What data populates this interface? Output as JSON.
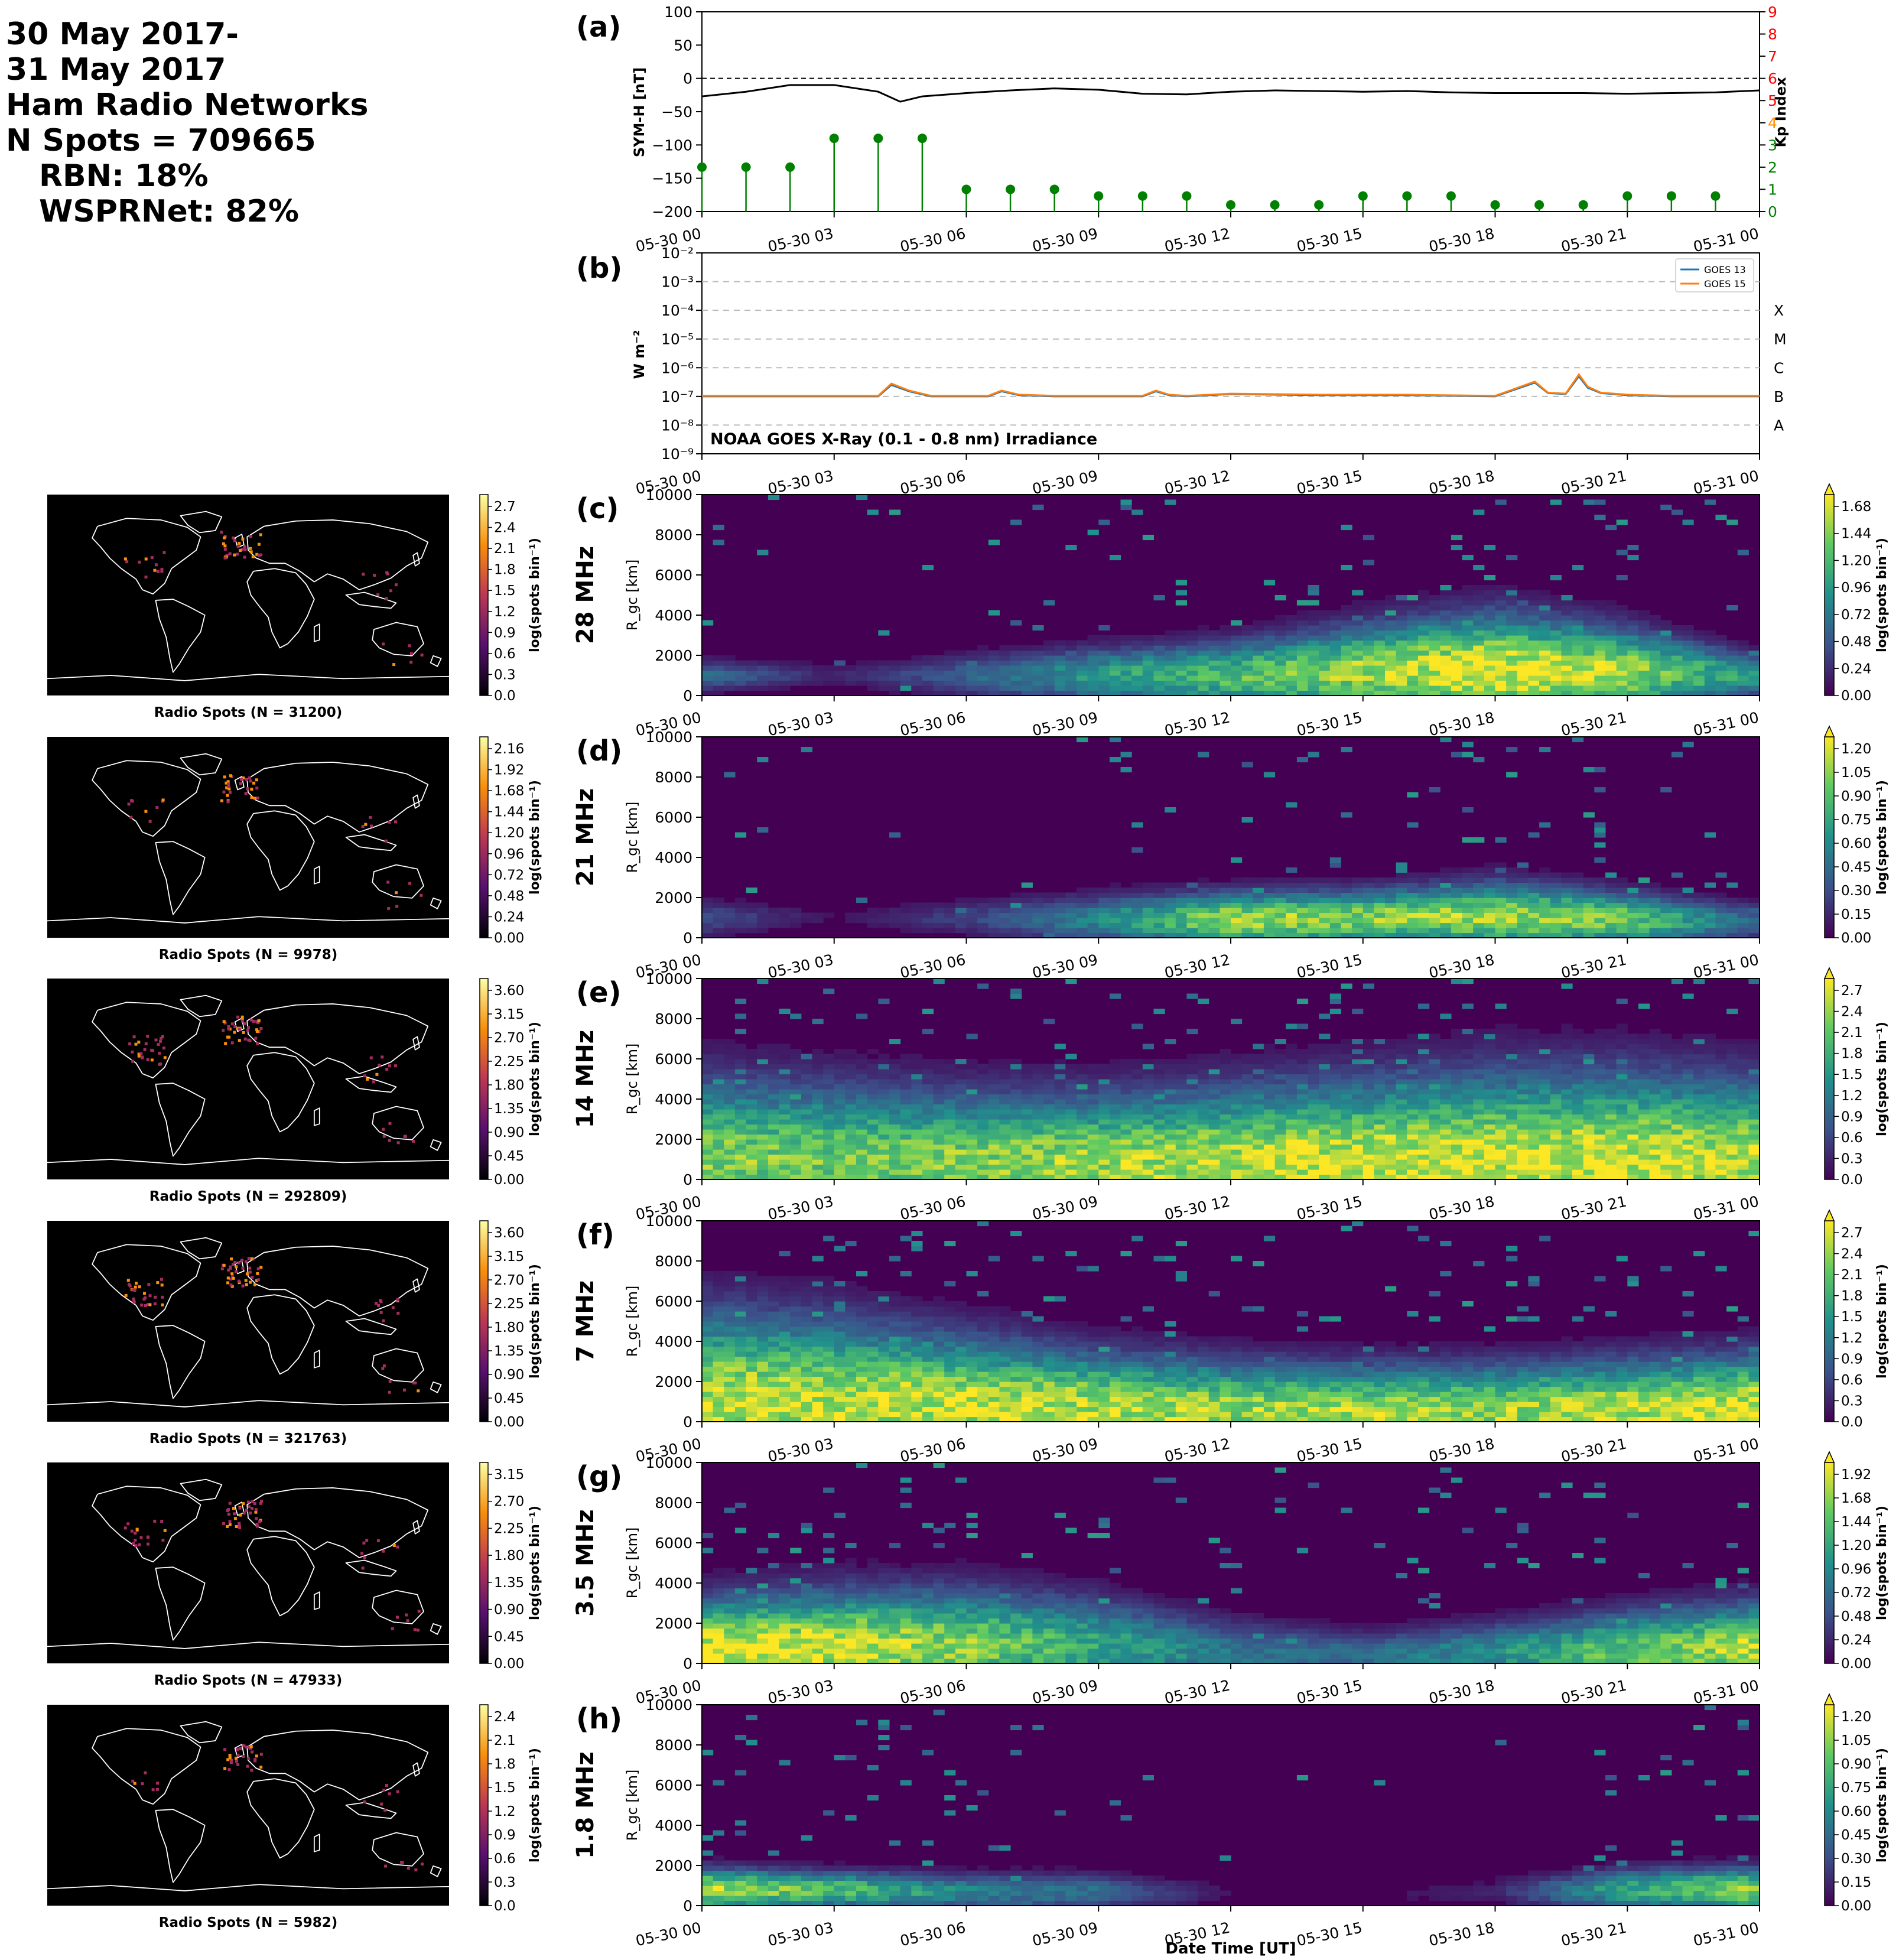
{
  "header": {
    "line1": "30 May 2017-",
    "line2": "31 May 2017",
    "line3": "Ham Radio Networks",
    "line4": "N Spots = 709665",
    "line5": "RBN: 18%",
    "line6": "WSPRNet: 82%"
  },
  "x_ticks": [
    "05-30 00",
    "05-30 03",
    "05-30 06",
    "05-30 09",
    "05-30 12",
    "05-30 15",
    "05-30 18",
    "05-30 21",
    "05-31 00"
  ],
  "x_label": "Date Time [UT]",
  "chart_data": [
    {
      "panel": "(a)",
      "type": "line",
      "ylabel": "SYM-H [nT]",
      "ylim": [
        -200,
        100
      ],
      "yticks": [
        100,
        50,
        0,
        -50,
        -100,
        -150,
        -200
      ],
      "y2label": "Kp Index",
      "y2lim": [
        0,
        9
      ],
      "y2ticks": [
        0,
        1,
        2,
        3,
        4,
        5,
        6,
        7,
        8,
        9
      ],
      "y2_tick_colors": [
        "#008000",
        "#008000",
        "#008000",
        "#008000",
        "#ff8c00",
        "#ff0000",
        "#ff0000",
        "#ff0000",
        "#ff0000",
        "#ff0000"
      ],
      "sym_h": {
        "color": "#000000",
        "x_hours": [
          0,
          1,
          2,
          3,
          4,
          4.5,
          5,
          6,
          7,
          8,
          9,
          10,
          11,
          12,
          13,
          14,
          15,
          16,
          17,
          18,
          19,
          20,
          21,
          22,
          23,
          24
        ],
        "values": [
          -27,
          -20,
          -10,
          -10,
          -20,
          -35,
          -27,
          -22,
          -18,
          -15,
          -17,
          -23,
          -24,
          -20,
          -18,
          -19,
          -20,
          -19,
          -21,
          -22,
          -22,
          -22,
          -23,
          -22,
          -21,
          -18
        ]
      },
      "kp": {
        "color": "#008000",
        "x_hours": [
          0,
          1,
          2,
          3,
          4,
          5,
          6,
          7,
          8,
          9,
          10,
          11,
          12,
          13,
          14,
          15,
          16,
          17,
          18,
          19,
          20,
          21,
          22,
          23
        ],
        "values": [
          2,
          2,
          2,
          3.3,
          3.3,
          3.3,
          1,
          1,
          1,
          0.7,
          0.7,
          0.7,
          0.3,
          0.3,
          0.3,
          0.7,
          0.7,
          0.7,
          0.3,
          0.3,
          0.3,
          0.7,
          0.7,
          0.7
        ]
      }
    },
    {
      "panel": "(b)",
      "type": "line",
      "ylabel": "W m⁻²",
      "yscale": "log",
      "ylim_exp": [
        -9,
        -2
      ],
      "ytick_labels": [
        "10⁻⁹",
        "10⁻⁸",
        "10⁻⁷",
        "10⁻⁶",
        "10⁻⁵",
        "10⁻⁴",
        "10⁻³",
        "10⁻²"
      ],
      "flare_classes": [
        "X",
        "M",
        "C",
        "B",
        "A"
      ],
      "annotation": "NOAA GOES X-Ray (0.1 - 0.8 nm) Irradiance",
      "series": [
        {
          "name": "GOES 13",
          "color": "#1f77b4",
          "x_hours": [
            0,
            2,
            4,
            4.3,
            4.7,
            5.2,
            6,
            6.5,
            6.8,
            7.2,
            8,
            10,
            10.3,
            10.6,
            11,
            12,
            14,
            16,
            18,
            18.9,
            19.2,
            19.6,
            19.9,
            20.1,
            20.4,
            21,
            22,
            24
          ],
          "values": [
            1e-07,
            1e-07,
            1e-07,
            2.5e-07,
            1.5e-07,
            1e-07,
            1e-07,
            1e-07,
            1.5e-07,
            1.1e-07,
            1e-07,
            1e-07,
            1.5e-07,
            1.1e-07,
            1e-07,
            1.2e-07,
            1.1e-07,
            1.1e-07,
            1e-07,
            3e-07,
            1.3e-07,
            1.2e-07,
            5e-07,
            2e-07,
            1.3e-07,
            1.1e-07,
            1e-07,
            1e-07
          ]
        },
        {
          "name": "GOES 15",
          "color": "#ff7f0e",
          "x_hours": [
            0,
            2,
            4,
            4.3,
            4.7,
            5.2,
            6,
            6.5,
            6.8,
            7.2,
            8,
            10,
            10.3,
            10.6,
            11,
            12,
            14,
            16,
            18,
            18.9,
            19.2,
            19.6,
            19.9,
            20.1,
            20.4,
            21,
            22,
            24
          ],
          "values": [
            1.05e-07,
            1.05e-07,
            1.05e-07,
            2.8e-07,
            1.6e-07,
            1.05e-07,
            1.05e-07,
            1.05e-07,
            1.6e-07,
            1.15e-07,
            1.05e-07,
            1.05e-07,
            1.6e-07,
            1.15e-07,
            1.05e-07,
            1.25e-07,
            1.15e-07,
            1.15e-07,
            1.05e-07,
            3.3e-07,
            1.35e-07,
            1.25e-07,
            5.8e-07,
            2.2e-07,
            1.35e-07,
            1.15e-07,
            1.05e-07,
            1.05e-07
          ]
        }
      ]
    },
    {
      "panel": "(c)",
      "band": "28 MHz",
      "type": "heatmap",
      "ylabel": "R_gc [km]",
      "ylim": [
        0,
        10000
      ],
      "yticks": [
        0,
        2000,
        4000,
        6000,
        8000,
        10000
      ],
      "cbar_label": "log(spots bin⁻¹)",
      "cbar_ticks": [
        "0.00",
        "0.24",
        "0.48",
        "0.72",
        "0.96",
        "1.20",
        "1.44",
        "1.68"
      ],
      "activity_hours": [
        0,
        3,
        6,
        9,
        12,
        15,
        18,
        21,
        24
      ],
      "activity_level": [
        0.35,
        0.1,
        0.3,
        0.55,
        0.7,
        0.85,
        1.0,
        0.85,
        0.5
      ],
      "peak_range_km": [
        1000,
        1000,
        1000,
        1000,
        1000,
        1200,
        1300,
        1200,
        1000
      ],
      "spread_km": [
        500,
        400,
        700,
        900,
        1100,
        1500,
        1800,
        1400,
        700
      ],
      "map": {
        "label": "Radio Spots (N = 31200)",
        "cbar_ticks": [
          "0.0",
          "0.3",
          "0.6",
          "0.9",
          "1.2",
          "1.5",
          "1.8",
          "2.1",
          "2.4",
          "2.7"
        ]
      }
    },
    {
      "panel": "(d)",
      "band": "21 MHz",
      "type": "heatmap",
      "ylabel": "R_gc [km]",
      "ylim": [
        0,
        10000
      ],
      "yticks": [
        0,
        2000,
        4000,
        6000,
        8000,
        10000
      ],
      "cbar_label": "log(spots bin⁻¹)",
      "cbar_ticks": [
        "0.00",
        "0.15",
        "0.30",
        "0.45",
        "0.60",
        "0.75",
        "0.90",
        "1.05",
        "1.20"
      ],
      "activity_hours": [
        0,
        3,
        6,
        9,
        12,
        15,
        18,
        21,
        24
      ],
      "activity_level": [
        0.25,
        0.05,
        0.2,
        0.45,
        0.85,
        0.8,
        0.85,
        0.75,
        0.3
      ],
      "peak_range_km": [
        1000,
        1000,
        1000,
        900,
        900,
        1000,
        1100,
        900,
        800
      ],
      "spread_km": [
        600,
        400,
        600,
        800,
        900,
        900,
        1100,
        900,
        600
      ],
      "map": {
        "label": "Radio Spots (N = 9978)",
        "cbar_ticks": [
          "0.00",
          "0.24",
          "0.48",
          "0.72",
          "0.96",
          "1.20",
          "1.44",
          "1.68",
          "1.92",
          "2.16"
        ]
      }
    },
    {
      "panel": "(e)",
      "band": "14 MHz",
      "type": "heatmap",
      "ylabel": "R_gc [km]",
      "ylim": [
        0,
        10000
      ],
      "yticks": [
        0,
        2000,
        4000,
        6000,
        8000,
        10000
      ],
      "cbar_label": "log(spots bin⁻¹)",
      "cbar_ticks": [
        "0.0",
        "0.3",
        "0.6",
        "0.9",
        "1.2",
        "1.5",
        "1.8",
        "2.1",
        "2.4",
        "2.7"
      ],
      "activity_hours": [
        0,
        3,
        6,
        9,
        12,
        15,
        18,
        21,
        24
      ],
      "activity_level": [
        0.8,
        0.75,
        0.8,
        0.85,
        0.9,
        0.95,
        0.95,
        0.95,
        0.9
      ],
      "peak_range_km": [
        1000,
        1000,
        900,
        800,
        800,
        800,
        900,
        900,
        900
      ],
      "spread_km": [
        2600,
        2400,
        2200,
        2200,
        2400,
        2600,
        2800,
        2800,
        2600
      ],
      "map": {
        "label": "Radio Spots (N = 292809)",
        "cbar_ticks": [
          "0.00",
          "0.45",
          "0.90",
          "1.35",
          "1.80",
          "2.25",
          "2.70",
          "3.15",
          "3.60"
        ]
      }
    },
    {
      "panel": "(f)",
      "band": "7 MHz",
      "type": "heatmap",
      "ylabel": "R_gc [km]",
      "ylim": [
        0,
        10000
      ],
      "yticks": [
        0,
        2000,
        4000,
        6000,
        8000,
        10000
      ],
      "cbar_label": "log(spots bin⁻¹)",
      "cbar_ticks": [
        "0.0",
        "0.3",
        "0.6",
        "0.9",
        "1.2",
        "1.5",
        "1.8",
        "2.1",
        "2.4",
        "2.7"
      ],
      "activity_hours": [
        0,
        3,
        6,
        9,
        12,
        15,
        18,
        21,
        24
      ],
      "activity_level": [
        0.9,
        0.9,
        0.9,
        0.9,
        0.85,
        0.85,
        0.85,
        0.9,
        0.95
      ],
      "peak_range_km": [
        1200,
        1000,
        800,
        600,
        500,
        500,
        500,
        600,
        700
      ],
      "spread_km": [
        2800,
        2600,
        2200,
        1800,
        1600,
        1500,
        1500,
        1600,
        1700
      ],
      "map": {
        "label": "Radio Spots (N = 321763)",
        "cbar_ticks": [
          "0.00",
          "0.45",
          "0.90",
          "1.35",
          "1.80",
          "2.25",
          "2.70",
          "3.15",
          "3.60"
        ]
      }
    },
    {
      "panel": "(g)",
      "band": "3.5 MHz",
      "type": "heatmap",
      "ylabel": "R_gc [km]",
      "ylim": [
        0,
        10000
      ],
      "yticks": [
        0,
        2000,
        4000,
        6000,
        8000,
        10000
      ],
      "cbar_label": "log(spots bin⁻¹)",
      "cbar_ticks": [
        "0.00",
        "0.24",
        "0.48",
        "0.72",
        "0.96",
        "1.20",
        "1.44",
        "1.68",
        "1.92"
      ],
      "activity_hours": [
        0,
        3,
        6,
        9,
        12,
        15,
        18,
        21,
        24
      ],
      "activity_level": [
        1.0,
        0.95,
        0.8,
        0.6,
        0.4,
        0.35,
        0.5,
        0.75,
        0.9
      ],
      "peak_range_km": [
        700,
        800,
        900,
        800,
        500,
        400,
        500,
        600,
        700
      ],
      "spread_km": [
        1600,
        1800,
        1800,
        1600,
        1100,
        800,
        1000,
        1300,
        1500
      ],
      "map": {
        "label": "Radio Spots (N = 47933)",
        "cbar_ticks": [
          "0.00",
          "0.45",
          "0.90",
          "1.35",
          "1.80",
          "2.25",
          "2.70",
          "3.15"
        ]
      }
    },
    {
      "panel": "(h)",
      "band": "1.8 MHz",
      "type": "heatmap",
      "ylabel": "R_gc [km]",
      "ylim": [
        0,
        10000
      ],
      "yticks": [
        0,
        2000,
        4000,
        6000,
        8000,
        10000
      ],
      "cbar_label": "log(spots bin⁻¹)",
      "cbar_ticks": [
        "0.00",
        "0.15",
        "0.30",
        "0.45",
        "0.60",
        "0.75",
        "0.90",
        "1.05",
        "1.20"
      ],
      "activity_hours": [
        0,
        3,
        6,
        9,
        12,
        15,
        18,
        21,
        24
      ],
      "activity_level": [
        0.9,
        0.7,
        0.45,
        0.35,
        0.05,
        0.05,
        0.1,
        0.6,
        0.85
      ],
      "peak_range_km": [
        800,
        800,
        700,
        700,
        600,
        600,
        700,
        800,
        800
      ],
      "spread_km": [
        700,
        600,
        600,
        600,
        400,
        400,
        500,
        700,
        700
      ],
      "map": {
        "label": "Radio Spots (N = 5982)",
        "cbar_ticks": [
          "0.0",
          "0.3",
          "0.6",
          "0.9",
          "1.2",
          "1.5",
          "1.8",
          "2.1",
          "2.4"
        ]
      }
    }
  ]
}
